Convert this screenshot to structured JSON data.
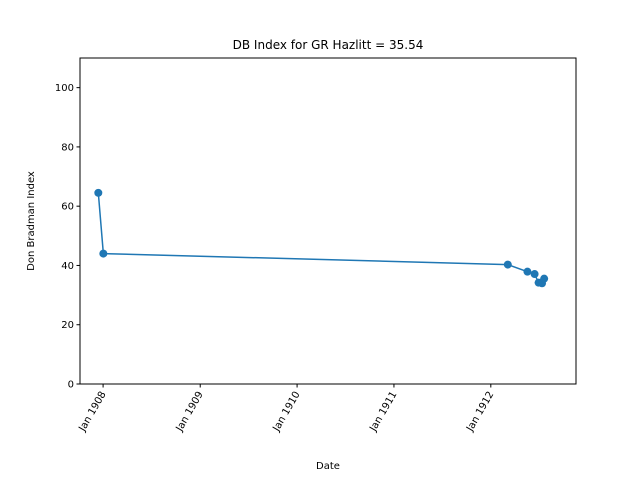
{
  "chart_data": {
    "type": "line",
    "title": "DB Index for GR Hazlitt = 35.54",
    "xlabel": "Date",
    "ylabel": "Don Bradman Index",
    "ylim": [
      0,
      110
    ],
    "xlim": [
      "1907-10-06",
      "1912-11-17"
    ],
    "yticks": [
      0,
      20,
      40,
      60,
      80,
      100
    ],
    "xticks": [
      {
        "date": "1908-01-01",
        "label": "Jan 1908"
      },
      {
        "date": "1909-01-01",
        "label": "Jan 1909"
      },
      {
        "date": "1910-01-01",
        "label": "Jan 1910"
      },
      {
        "date": "1911-01-01",
        "label": "Jan 1911"
      },
      {
        "date": "1912-01-01",
        "label": "Jan 1912"
      }
    ],
    "grid": false,
    "series": [
      {
        "color": "#1f77b4",
        "marker": "circle",
        "points": [
          {
            "x": "1907-12-14",
            "y": 64.5
          },
          {
            "x": "1908-01-02",
            "y": 44.0
          },
          {
            "x": "1912-03-05",
            "y": 40.3
          },
          {
            "x": "1912-05-18",
            "y": 37.9
          },
          {
            "x": "1912-06-14",
            "y": 37.1
          },
          {
            "x": "1912-06-29",
            "y": 34.2
          },
          {
            "x": "1912-07-12",
            "y": 34.0
          },
          {
            "x": "1912-07-20",
            "y": 35.54
          }
        ]
      }
    ]
  }
}
